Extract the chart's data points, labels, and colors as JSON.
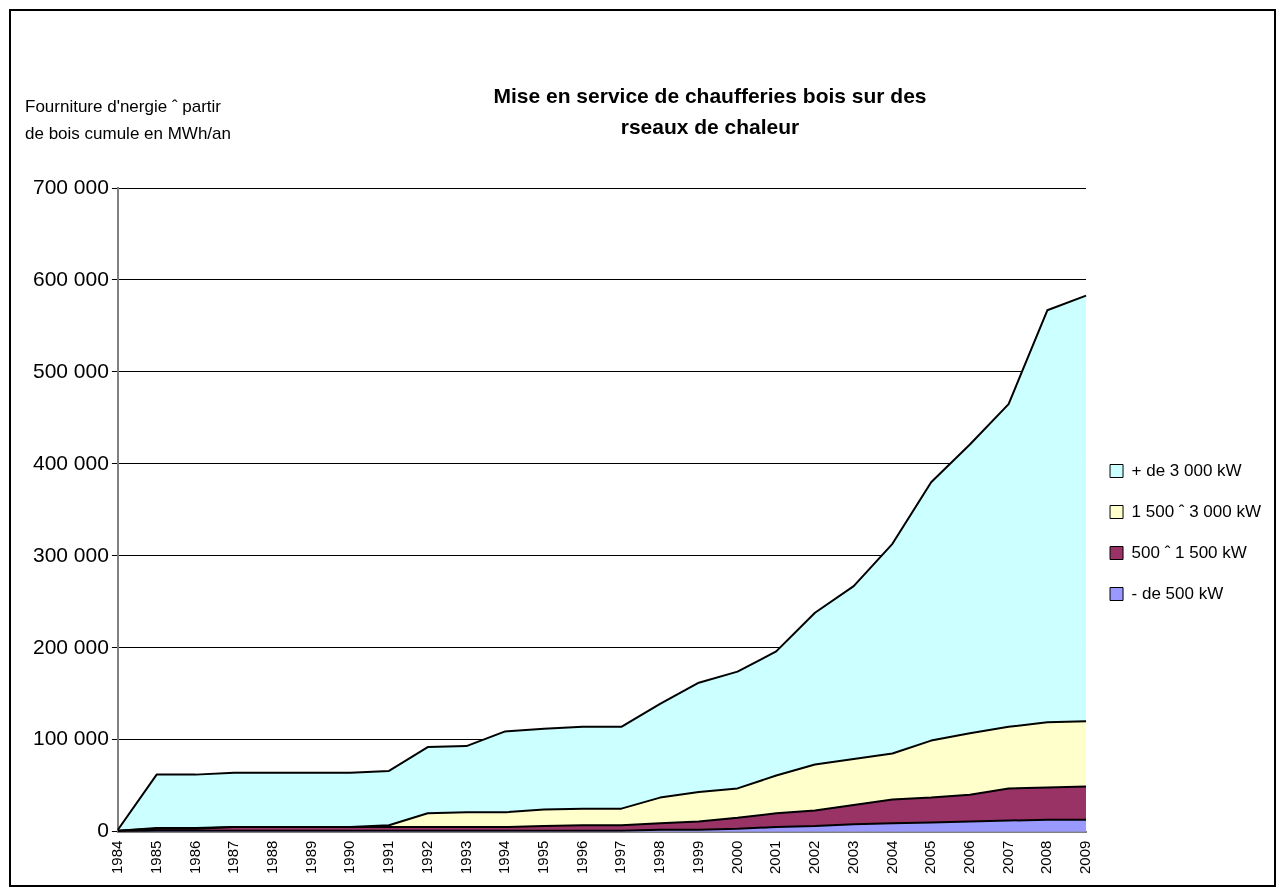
{
  "chart_data": {
    "type": "area",
    "title": "Mise en service de chaufferies bois sur des rseaux de chaleur",
    "ylabel": "Fourniture d'nergie ˆ partir de bois cumule en MWh/an",
    "categories": [
      "1984",
      "1985",
      "1986",
      "1987",
      "1988",
      "1989",
      "1990",
      "1991",
      "1992",
      "1993",
      "1994",
      "1995",
      "1996",
      "1997",
      "1998",
      "1999",
      "2000",
      "2001",
      "2002",
      "2003",
      "2004",
      "2005",
      "2006",
      "2007",
      "2008",
      "2009"
    ],
    "stacked": true,
    "grid": "y",
    "legend": "right",
    "ylim": [
      0,
      700000
    ],
    "yticks": [
      {
        "value": 0,
        "label": "0"
      },
      {
        "value": 100000,
        "label": "100 000"
      },
      {
        "value": 200000,
        "label": "200 000"
      },
      {
        "value": 300000,
        "label": "300 000"
      },
      {
        "value": 400000,
        "label": "400 000"
      },
      {
        "value": 500000,
        "label": "500 000"
      },
      {
        "value": 600000,
        "label": "600 000"
      },
      {
        "value": 700000,
        "label": "700 000"
      }
    ],
    "series": [
      {
        "name": "- de 500 kW",
        "color": "#9999ff",
        "values": [
          0,
          1000,
          1000,
          1000,
          1000,
          1000,
          1000,
          1000,
          1000,
          1000,
          1000,
          1000,
          1000,
          1000,
          2000,
          2000,
          3000,
          5000,
          6000,
          8000,
          9000,
          10000,
          11000,
          12000,
          13000,
          13000
        ]
      },
      {
        "name": "500 ˆ 1 500 kW",
        "color": "#993366",
        "values": [
          1000,
          2000,
          2000,
          4000,
          4000,
          4000,
          4000,
          4000,
          4000,
          4000,
          4000,
          5000,
          6000,
          6000,
          7000,
          9000,
          12000,
          15000,
          17000,
          21000,
          26000,
          27000,
          29000,
          35000,
          35000,
          36000
        ]
      },
      {
        "name": "1 500 ˆ 3 000 kW",
        "color": "#ffffcc",
        "values": [
          0,
          1000,
          1000,
          0,
          0,
          0,
          0,
          2000,
          15000,
          16000,
          16000,
          18000,
          18000,
          18000,
          28000,
          32000,
          32000,
          41000,
          50000,
          50000,
          50000,
          62000,
          67000,
          67000,
          71000,
          71000
        ]
      },
      {
        "name": "+ de 3 000 kW",
        "color": "#ccffff",
        "values": [
          1000,
          58000,
          58000,
          59000,
          59000,
          59000,
          59000,
          59000,
          72000,
          72000,
          88000,
          88000,
          89000,
          89000,
          102000,
          119000,
          127000,
          135000,
          165000,
          188000,
          228000,
          281000,
          314000,
          351000,
          448000,
          463000
        ]
      }
    ]
  }
}
